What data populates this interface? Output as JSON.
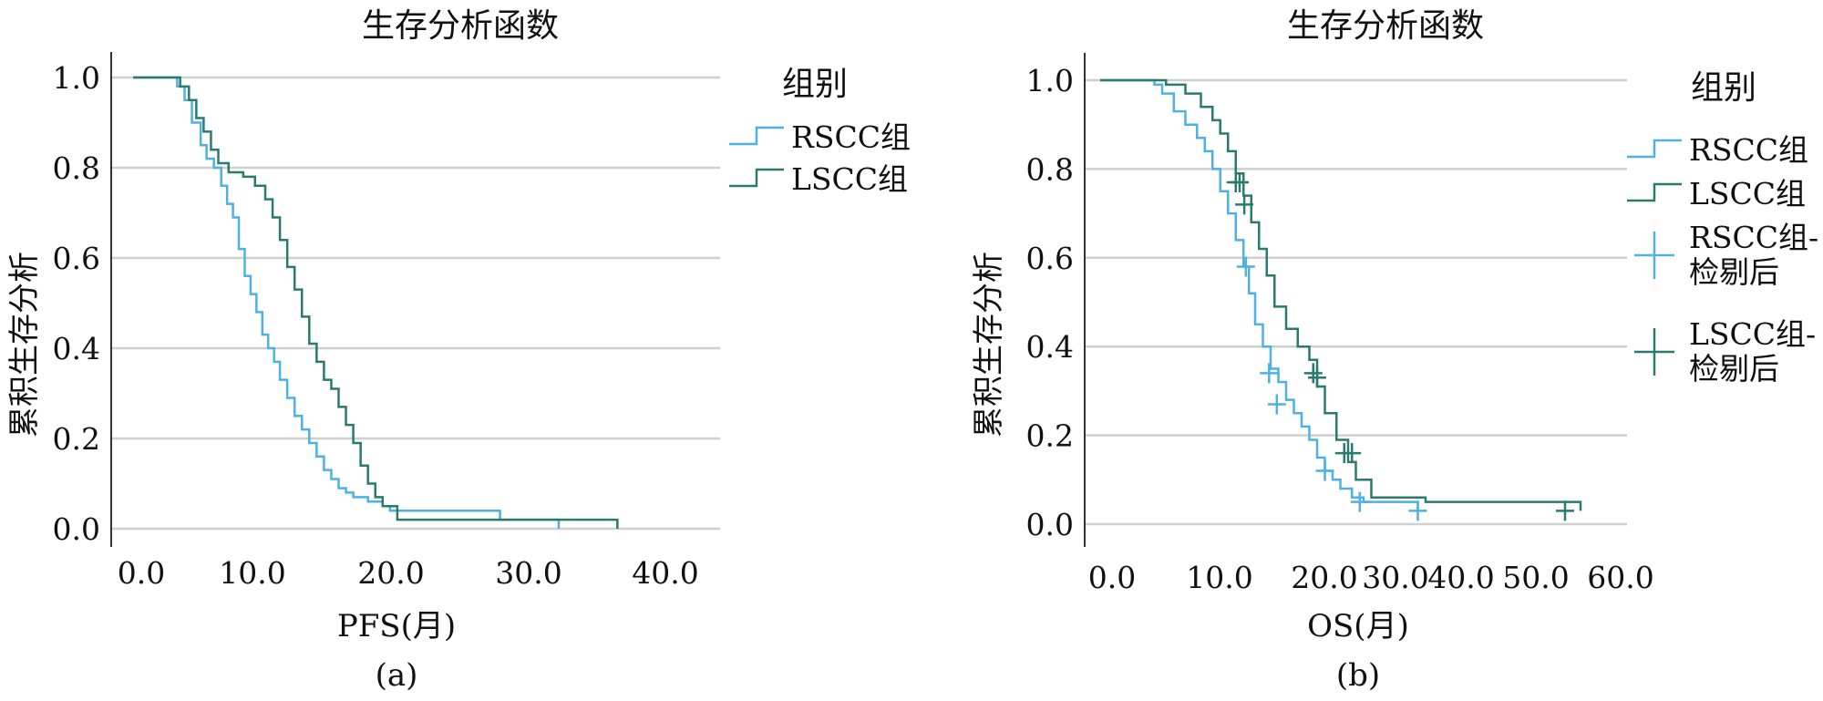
{
  "chart_data": [
    {
      "type": "line",
      "panel_label": "(a)",
      "title": "生存分析函数",
      "xlabel": "PFS(月)",
      "ylabel": "累积生存分析",
      "xlim": [
        -1.5,
        40
      ],
      "ylim": [
        0.0,
        1.0
      ],
      "xticks": [
        "0.0",
        "10.0",
        "20.0",
        "30.0",
        "40.0"
      ],
      "yticks": [
        "0.0",
        "0.2",
        "0.4",
        "0.6",
        "0.8",
        "1.0"
      ],
      "grid": "horizontal",
      "legend_title": "组别",
      "legend_position": "right",
      "series": [
        {
          "name": "RSCC组",
          "color": "#4db1e6",
          "x": [
            0,
            3,
            3.5,
            4,
            4.6,
            5,
            5.5,
            6,
            6.4,
            6.8,
            7.2,
            7.6,
            8,
            8.4,
            8.8,
            9.2,
            9.6,
            10,
            10.5,
            11,
            11.5,
            12,
            12.5,
            13,
            13.5,
            14,
            14.5,
            15,
            16,
            17,
            17.5,
            25,
            29
          ],
          "y": [
            1.0,
            0.98,
            0.95,
            0.9,
            0.85,
            0.82,
            0.8,
            0.76,
            0.72,
            0.69,
            0.62,
            0.56,
            0.52,
            0.48,
            0.43,
            0.4,
            0.37,
            0.33,
            0.29,
            0.25,
            0.22,
            0.19,
            0.16,
            0.13,
            0.11,
            0.09,
            0.08,
            0.07,
            0.06,
            0.05,
            0.04,
            0.02,
            0.0
          ]
        },
        {
          "name": "LSCC组",
          "color": "#2a7a6e",
          "x": [
            0,
            3.2,
            3.8,
            4.3,
            4.8,
            5.3,
            5.8,
            6.5,
            7.5,
            8.3,
            9,
            9.5,
            10,
            10.5,
            11,
            11.5,
            12,
            12.5,
            13,
            13.5,
            14,
            14.5,
            15,
            15.5,
            16,
            16.5,
            17,
            18,
            33
          ],
          "y": [
            1.0,
            0.98,
            0.95,
            0.91,
            0.88,
            0.84,
            0.81,
            0.79,
            0.78,
            0.76,
            0.73,
            0.69,
            0.64,
            0.58,
            0.53,
            0.47,
            0.41,
            0.37,
            0.33,
            0.31,
            0.27,
            0.23,
            0.19,
            0.14,
            0.1,
            0.07,
            0.05,
            0.02,
            0.0
          ]
        }
      ]
    },
    {
      "type": "line",
      "panel_label": "(b)",
      "title": "生存分析函数",
      "xlabel": "OS(月)",
      "ylabel": "累积生存分析",
      "xlim": [
        -2,
        68
      ],
      "ylim": [
        0.0,
        1.0
      ],
      "xticks": [
        "0.0",
        "10.0",
        "20.0",
        "30.0",
        "40.0",
        "50.0",
        "60.0"
      ],
      "yticks": [
        "0.0",
        "0.2",
        "0.4",
        "0.6",
        "0.8",
        "1.0"
      ],
      "grid": "horizontal",
      "legend_title": "组别",
      "legend_position": "right",
      "series": [
        {
          "name": "RSCC组",
          "color": "#4db1e6",
          "x": [
            0,
            7,
            8,
            9.5,
            11,
            12.5,
            13.5,
            14.5,
            15.5,
            16.5,
            17.5,
            18.5,
            19.2,
            20,
            21,
            22,
            23,
            24,
            25,
            26,
            27,
            28,
            29,
            30,
            31,
            32.5,
            34,
            41
          ],
          "y": [
            1.0,
            0.99,
            0.97,
            0.93,
            0.9,
            0.87,
            0.84,
            0.8,
            0.75,
            0.7,
            0.64,
            0.58,
            0.52,
            0.45,
            0.4,
            0.35,
            0.32,
            0.28,
            0.25,
            0.22,
            0.19,
            0.15,
            0.12,
            0.1,
            0.08,
            0.06,
            0.05,
            0.03
          ]
        },
        {
          "name": "LSCC组",
          "color": "#2a7a6e",
          "x": [
            0,
            8.5,
            11,
            13,
            14.5,
            15.5,
            16.5,
            17.5,
            18.5,
            19.5,
            20.5,
            21.5,
            22.5,
            24,
            25.5,
            27,
            28,
            29,
            30.5,
            32,
            33,
            35,
            42,
            62
          ],
          "y": [
            1.0,
            0.99,
            0.97,
            0.94,
            0.91,
            0.88,
            0.84,
            0.79,
            0.74,
            0.68,
            0.62,
            0.56,
            0.49,
            0.44,
            0.4,
            0.37,
            0.31,
            0.25,
            0.19,
            0.14,
            0.1,
            0.06,
            0.05,
            0.03
          ]
        },
        {
          "name": "RSCC组-检剔后",
          "color": "#4db1e6",
          "marker": "+",
          "x": [
            18.8,
            21.8,
            22.8,
            29,
            33.5,
            41
          ],
          "y": [
            0.58,
            0.34,
            0.27,
            0.12,
            0.05,
            0.03
          ]
        },
        {
          "name": "LSCC组-检剔后",
          "color": "#2a7a6e",
          "marker": "+",
          "x": [
            17.5,
            18,
            18.6,
            27.5,
            28,
            31.5,
            32.5,
            60
          ],
          "y": [
            0.77,
            0.77,
            0.72,
            0.34,
            0.33,
            0.16,
            0.16,
            0.03
          ]
        }
      ]
    }
  ]
}
